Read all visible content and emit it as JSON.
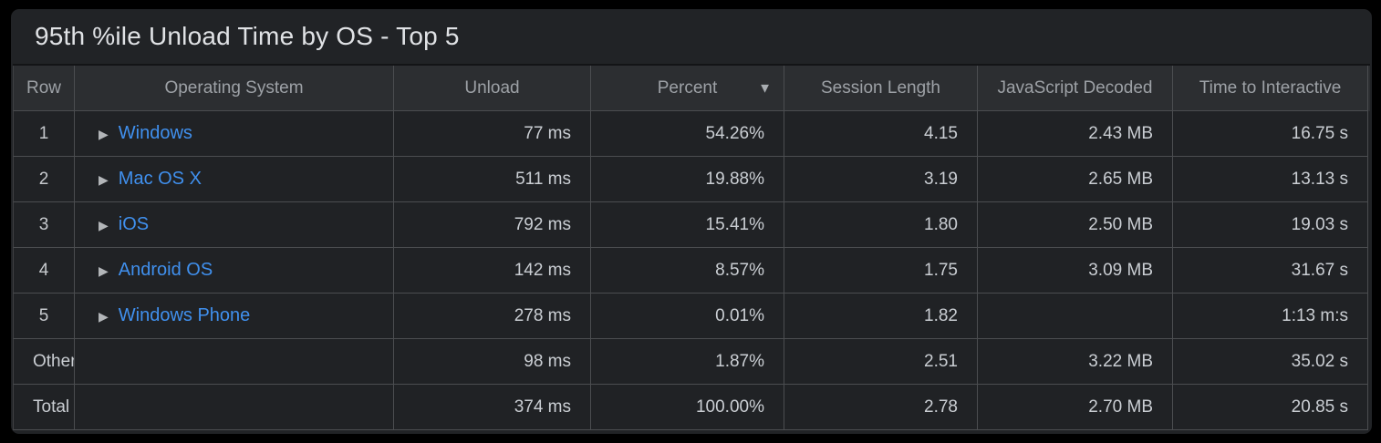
{
  "widget": {
    "title": "95th %ile Unload Time by OS - Top 5"
  },
  "table": {
    "sort_icon": "▼",
    "sort_column": "Percent",
    "sort_direction": "descending",
    "expand_icon": "▶",
    "columns": [
      {
        "label": "Row"
      },
      {
        "label": "Operating System"
      },
      {
        "label": "Unload"
      },
      {
        "label": "Percent"
      },
      {
        "label": "Session Length"
      },
      {
        "label": "JavaScript Decoded"
      },
      {
        "label": "Time to Interactive"
      }
    ],
    "rows": [
      {
        "row": "1",
        "os": "Windows",
        "unload": "77 ms",
        "percent": "54.26%",
        "session": "4.15",
        "js": "2.43 MB",
        "tti": "16.75 s"
      },
      {
        "row": "2",
        "os": "Mac OS X",
        "unload": "511 ms",
        "percent": "19.88%",
        "session": "3.19",
        "js": "2.65 MB",
        "tti": "13.13 s"
      },
      {
        "row": "3",
        "os": "iOS",
        "unload": "792 ms",
        "percent": "15.41%",
        "session": "1.80",
        "js": "2.50 MB",
        "tti": "19.03 s"
      },
      {
        "row": "4",
        "os": "Android OS",
        "unload": "142 ms",
        "percent": "8.57%",
        "session": "1.75",
        "js": "3.09 MB",
        "tti": "31.67 s"
      },
      {
        "row": "5",
        "os": "Windows Phone",
        "unload": "278 ms",
        "percent": "0.01%",
        "session": "1.82",
        "js": "",
        "tti": "1:13 m:s"
      },
      {
        "row": "Other",
        "os": "",
        "unload": "98 ms",
        "percent": "1.87%",
        "session": "2.51",
        "js": "3.22 MB",
        "tti": "35.02 s"
      },
      {
        "row": "Total",
        "os": "",
        "unload": "374 ms",
        "percent": "100.00%",
        "session": "2.78",
        "js": "2.70 MB",
        "tti": "20.85 s"
      }
    ]
  },
  "colors": {
    "page_bg": "#000000",
    "panel_bg": "#212326",
    "row_bg": "#202225",
    "header_bg": "#2c2e31",
    "grid_border": "#4b4d50",
    "title_text": "#e0e2e5",
    "header_text": "#9da1a6",
    "cell_text": "#caced3",
    "link_blue": "#4090ee",
    "expand_triangle": "#b3b6b9"
  }
}
